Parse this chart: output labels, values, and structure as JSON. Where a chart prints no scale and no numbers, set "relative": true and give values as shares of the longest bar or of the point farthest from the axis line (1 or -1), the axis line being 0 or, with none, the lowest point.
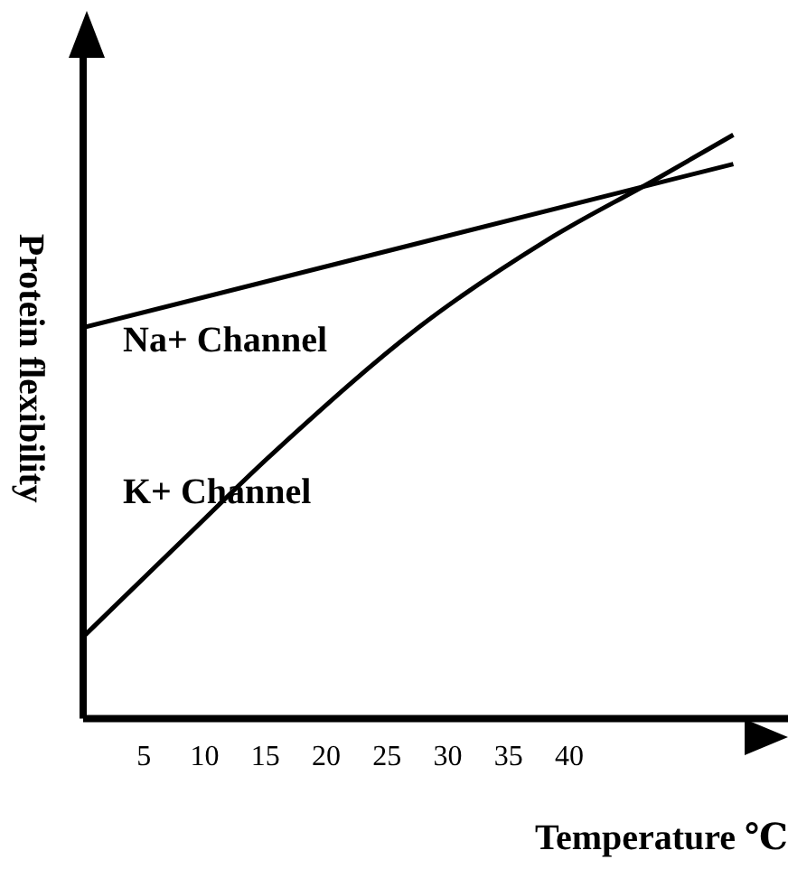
{
  "chart_data": {
    "type": "line",
    "xlabel": "Temperature ℃",
    "ylabel": "Protein flexibility",
    "relative": true,
    "xlim": [
      0,
      58
    ],
    "xticks": [
      5,
      10,
      15,
      20,
      25,
      30,
      35,
      40
    ],
    "grid": false,
    "legend": false,
    "marker": "none",
    "line_style": "solid",
    "series": [
      {
        "name": "Na+ Channel",
        "color": "#000000",
        "x": [
          0,
          53.5
        ],
        "values": [
          0.67,
          0.95
        ]
      },
      {
        "name": "K+ Channel",
        "color": "#000000",
        "x": [
          0,
          7.9,
          15.9,
          27.6,
          38.2,
          46.8,
          53.5
        ],
        "values": [
          0.14,
          0.3,
          0.46,
          0.67,
          0.82,
          0.92,
          1
        ]
      }
    ]
  }
}
